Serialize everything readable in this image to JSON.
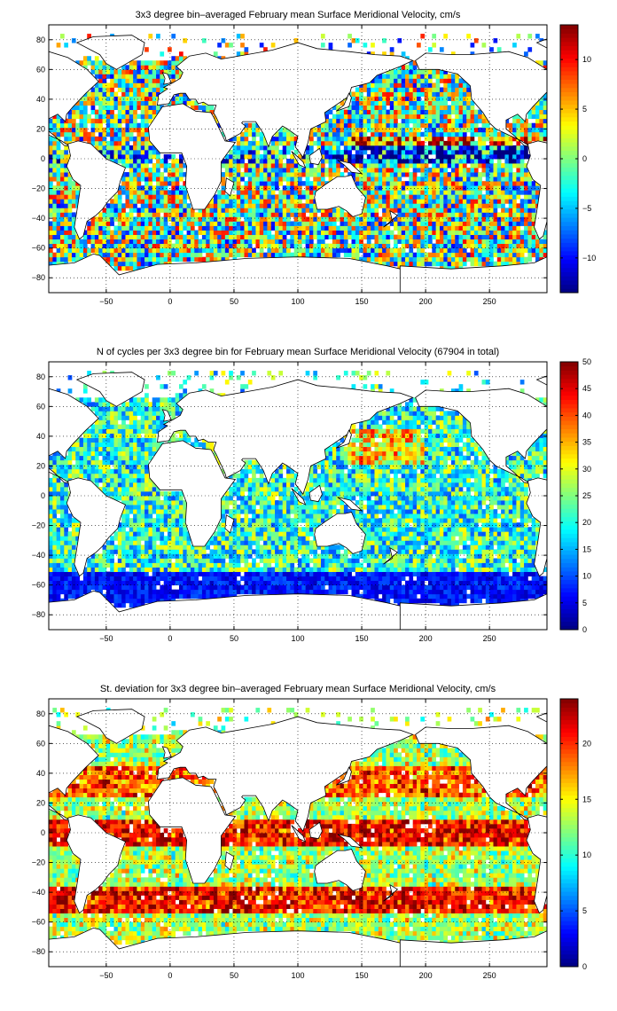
{
  "chart_data": [
    {
      "type": "heatmap",
      "title": "3x3 degree bin–averaged February mean Surface Meridional Velocity, cm/s",
      "xlim": [
        -95,
        295
      ],
      "ylim": [
        -90,
        90
      ],
      "xticks": [
        -50,
        0,
        50,
        100,
        150,
        200,
        250
      ],
      "yticks": [
        -80,
        -60,
        -40,
        -20,
        0,
        20,
        40,
        60,
        80
      ],
      "colorbar": {
        "min": -13.5,
        "max": 13.5,
        "ticks": [
          -10,
          -5,
          0,
          5,
          10
        ],
        "colormap": "jet"
      },
      "bin_size_deg": 3,
      "grid": true
    },
    {
      "type": "heatmap",
      "title": "N of cycles per 3x3 degree bin for February mean Surface Meridional Velocity (67904 in total)",
      "xlim": [
        -95,
        295
      ],
      "ylim": [
        -90,
        90
      ],
      "xticks": [
        -50,
        0,
        50,
        100,
        150,
        200,
        250
      ],
      "yticks": [
        -80,
        -60,
        -40,
        -20,
        0,
        20,
        40,
        60,
        80
      ],
      "colorbar": {
        "min": 0,
        "max": 50,
        "ticks": [
          0,
          5,
          10,
          15,
          20,
          25,
          30,
          35,
          40,
          45,
          50
        ],
        "colormap": "jet"
      },
      "bin_size_deg": 3,
      "grid": true
    },
    {
      "type": "heatmap",
      "title": "St. deviation for 3x3 degree bin–averaged February mean Surface Meridional Velocity, cm/s",
      "xlim": [
        -95,
        295
      ],
      "ylim": [
        -90,
        90
      ],
      "xticks": [
        -50,
        0,
        50,
        100,
        150,
        200,
        250
      ],
      "yticks": [
        -80,
        -60,
        -40,
        -20,
        0,
        20,
        40,
        60,
        80
      ],
      "colorbar": {
        "min": 0,
        "max": 24,
        "ticks": [
          0,
          5,
          10,
          15,
          20
        ],
        "colormap": "jet"
      },
      "bin_size_deg": 3,
      "grid": true
    }
  ]
}
